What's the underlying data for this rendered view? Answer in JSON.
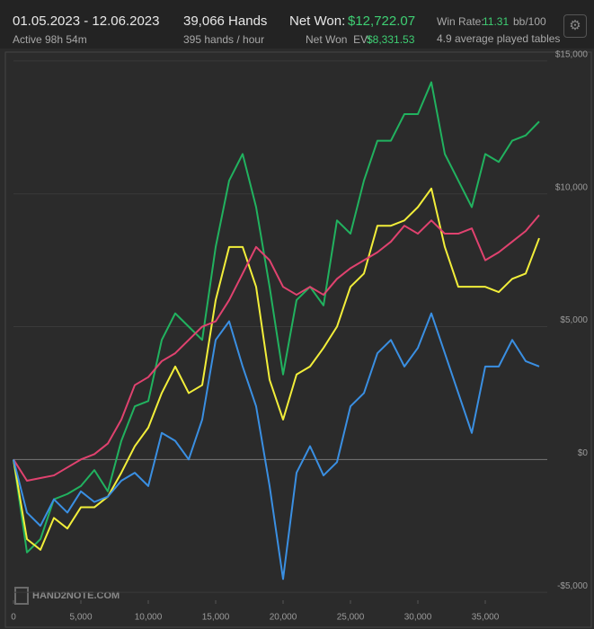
{
  "header": {
    "date_range": "01.05.2023 - 12.06.2023",
    "active": "Active 98h 54m",
    "hands": "39,066 Hands",
    "hands_per_hour": "395 hands / hour",
    "net_won_label": "Net Won:",
    "net_won": "$12,722.07",
    "net_won_ev_label": "Net Won  EV:",
    "net_won_ev": "$8,331.53",
    "win_rate_label": "Win Rate:",
    "win_rate": "11.31",
    "win_rate_unit": "bb/100",
    "tables": "4.9 average played tables"
  },
  "watermark": "HAND2NOTE.COM",
  "chart_data": {
    "type": "line",
    "x": [
      0,
      1000,
      2000,
      3000,
      4000,
      5000,
      6000,
      7000,
      8000,
      9000,
      10000,
      11000,
      12000,
      13000,
      14000,
      15000,
      16000,
      17000,
      18000,
      19000,
      20000,
      21000,
      22000,
      23000,
      24000,
      25000,
      26000,
      27000,
      28000,
      29000,
      30000,
      31000,
      32000,
      33000,
      34000,
      35000,
      36000,
      37000,
      38000,
      39000
    ],
    "series": [
      {
        "color": "#21b25f",
        "values": [
          0,
          -3500,
          -3000,
          -1500,
          -1300,
          -1000,
          -400,
          -1200,
          700,
          2000,
          2200,
          4500,
          5500,
          5000,
          4500,
          8000,
          10500,
          11500,
          9500,
          6500,
          3200,
          6000,
          6500,
          5800,
          9000,
          8500,
          10500,
          12000,
          12000,
          13000,
          13000,
          14200,
          11500,
          10500,
          9500,
          11500,
          11200,
          12000,
          12200,
          12722
        ]
      },
      {
        "color": "#f2ee3a",
        "values": [
          0,
          -3000,
          -3400,
          -2200,
          -2600,
          -1800,
          -1800,
          -1400,
          -500,
          500,
          1200,
          2500,
          3500,
          2500,
          2800,
          6000,
          8000,
          8000,
          6500,
          3000,
          1500,
          3200,
          3500,
          4200,
          5000,
          6500,
          7000,
          8800,
          8800,
          9000,
          9500,
          10200,
          8000,
          6500,
          6500,
          6500,
          6300,
          6800,
          7000,
          8331
        ]
      },
      {
        "color": "#e0426f",
        "values": [
          0,
          -800,
          -700,
          -600,
          -300,
          0,
          200,
          600,
          1500,
          2800,
          3100,
          3700,
          4000,
          4500,
          5000,
          5200,
          6000,
          7000,
          8000,
          7500,
          6500,
          6200,
          6500,
          6200,
          6800,
          7200,
          7500,
          7800,
          8200,
          8800,
          8500,
          9000,
          8500,
          8500,
          8700,
          7500,
          7800,
          8200,
          8600,
          9200
        ]
      },
      {
        "color": "#3a8fe2",
        "values": [
          0,
          -2000,
          -2500,
          -1500,
          -2000,
          -1200,
          -1600,
          -1400,
          -800,
          -500,
          -1000,
          1000,
          700,
          0,
          1500,
          4500,
          5200,
          3500,
          2000,
          -1000,
          -4500,
          -500,
          500,
          -600,
          -100,
          2000,
          2500,
          4000,
          4500,
          3500,
          4200,
          5500,
          4000,
          2500,
          1000,
          3500,
          3500,
          4500,
          3700,
          3500
        ]
      }
    ],
    "xlim": [
      0,
      39600
    ],
    "ylim": [
      -5300,
      15200
    ],
    "xticks": [
      0,
      {
        "value": 5000,
        "label": "5,000"
      },
      {
        "value": 10000,
        "label": "10,000"
      },
      {
        "value": 15000,
        "label": "15,000"
      },
      {
        "value": 20000,
        "label": "20,000"
      },
      {
        "value": 25000,
        "label": "25,000"
      },
      {
        "value": 30000,
        "label": "30,000"
      },
      {
        "value": 35000,
        "label": "35,000"
      }
    ],
    "yticks": [
      {
        "value": -5000,
        "label": "-$5,000"
      },
      {
        "value": 0,
        "label": "$0"
      },
      {
        "value": 5000,
        "label": "$5,000"
      },
      {
        "value": 10000,
        "label": "$10,000"
      },
      {
        "value": 15000,
        "label": "$15,000"
      }
    ],
    "grid": true
  }
}
